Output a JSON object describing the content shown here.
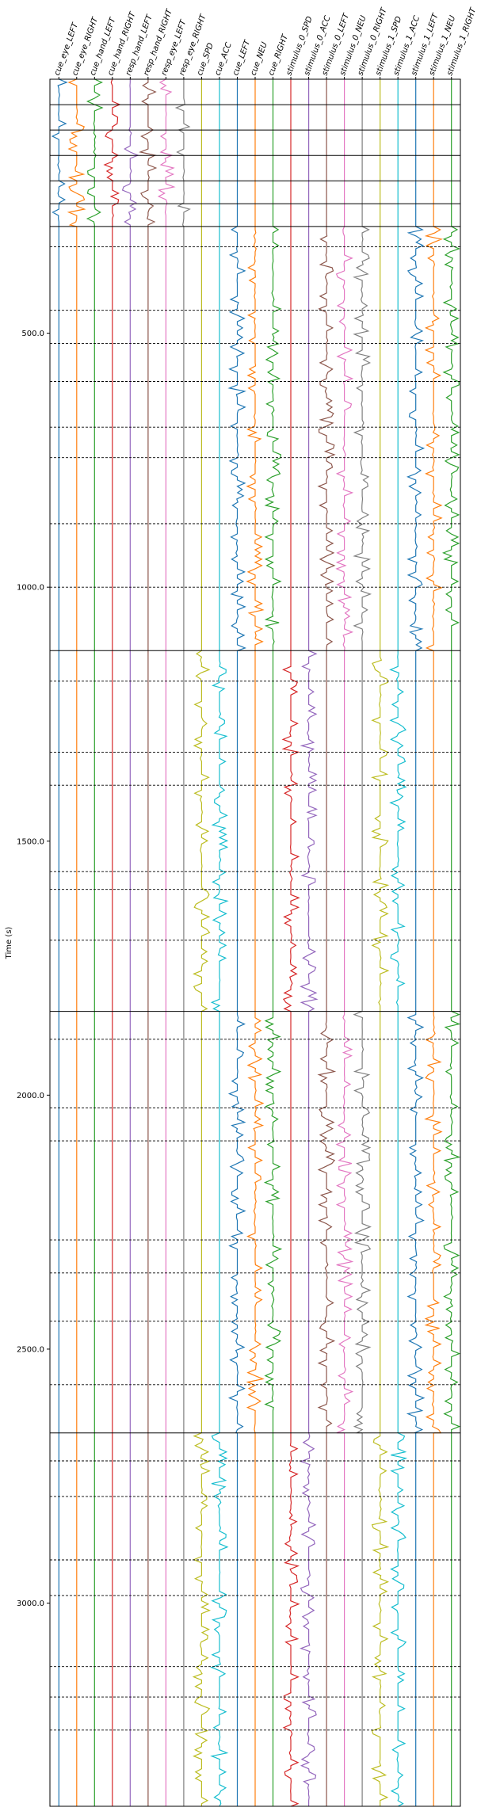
{
  "chart_data": {
    "type": "line",
    "title": "",
    "xlabel": "",
    "ylabel": "Time (s)",
    "ylim": [
      0,
      3400
    ],
    "y_inverted": true,
    "yticks": [
      500,
      1000,
      1500,
      2000,
      2500,
      3000
    ],
    "ytick_labels": [
      "500.0",
      "1000.0",
      "1500.0",
      "2000.0",
      "2500.0",
      "3000.0"
    ],
    "grid": false,
    "legend": "none",
    "columns": [
      {
        "name": "cue_eye_LEFT",
        "color": "#1f77b4"
      },
      {
        "name": "cue_eye_RIGHT",
        "color": "#ff7f0e"
      },
      {
        "name": "cue_hand_LEFT",
        "color": "#2ca02c"
      },
      {
        "name": "cue_hand_RIGHT",
        "color": "#d62728"
      },
      {
        "name": "resp_hand_LEFT",
        "color": "#9467bd"
      },
      {
        "name": "resp_hand_RIGHT",
        "color": "#8c564b"
      },
      {
        "name": "resp_eye_LEFT",
        "color": "#e377c2"
      },
      {
        "name": "resp_eye_RIGHT",
        "color": "#7f7f7f"
      },
      {
        "name": "cue_SPD",
        "color": "#bcbd22"
      },
      {
        "name": "cue_ACC",
        "color": "#17becf"
      },
      {
        "name": "cue_LEFT",
        "color": "#1f77b4"
      },
      {
        "name": "cue_NEU",
        "color": "#ff7f0e"
      },
      {
        "name": "cue_RIGHT",
        "color": "#2ca02c"
      },
      {
        "name": "stimulus_0_SPD",
        "color": "#d62728"
      },
      {
        "name": "stimulus_0_ACC",
        "color": "#9467bd"
      },
      {
        "name": "stimulus_0_LEFT",
        "color": "#8c564b"
      },
      {
        "name": "stimulus_0_NEU",
        "color": "#e377c2"
      },
      {
        "name": "stimulus_0_RIGHT",
        "color": "#7f7f7f"
      },
      {
        "name": "stimulus_1_SPD",
        "color": "#bcbd22"
      },
      {
        "name": "stimulus_1_ACC",
        "color": "#17becf"
      },
      {
        "name": "stimulus_1_LEFT",
        "color": "#1f77b4"
      },
      {
        "name": "stimulus_1_NEU",
        "color": "#ff7f0e"
      },
      {
        "name": "stimulus_1_RIGHT",
        "color": "#2ca02c"
      }
    ],
    "run_boundaries": [
      0,
      50,
      100,
      150,
      200,
      245,
      290,
      1125,
      1835,
      2665,
      3400
    ],
    "block_boundaries": [
      330,
      455,
      520,
      595,
      685,
      745,
      875,
      1000,
      1185,
      1325,
      1390,
      1560,
      1595,
      1695,
      1890,
      2025,
      2090,
      2285,
      2350,
      2445,
      2570,
      2720,
      2790,
      2915,
      2985,
      3125,
      3185,
      3250
    ],
    "segments": [
      {
        "start": 0,
        "end": 290,
        "active": [
          "cue_eye_LEFT",
          "cue_eye_RIGHT",
          "cue_hand_LEFT",
          "cue_hand_RIGHT",
          "resp_hand_LEFT",
          "resp_hand_RIGHT",
          "resp_eye_LEFT",
          "resp_eye_RIGHT"
        ]
      },
      {
        "start": 290,
        "end": 1125,
        "active": [
          "cue_LEFT",
          "cue_NEU",
          "cue_RIGHT",
          "stimulus_0_LEFT",
          "stimulus_0_NEU",
          "stimulus_0_RIGHT",
          "stimulus_1_LEFT",
          "stimulus_1_NEU",
          "stimulus_1_RIGHT"
        ]
      },
      {
        "start": 1125,
        "end": 1835,
        "active": [
          "cue_SPD",
          "cue_ACC",
          "stimulus_0_SPD",
          "stimulus_0_ACC",
          "stimulus_1_SPD",
          "stimulus_1_ACC"
        ]
      },
      {
        "start": 1835,
        "end": 2665,
        "active": [
          "cue_LEFT",
          "cue_NEU",
          "cue_RIGHT",
          "stimulus_0_LEFT",
          "stimulus_0_NEU",
          "stimulus_0_RIGHT",
          "stimulus_1_LEFT",
          "stimulus_1_NEU",
          "stimulus_1_RIGHT"
        ]
      },
      {
        "start": 2665,
        "end": 3400,
        "active": [
          "cue_SPD",
          "cue_ACC",
          "stimulus_0_SPD",
          "stimulus_0_ACC",
          "stimulus_1_SPD",
          "stimulus_1_ACC"
        ]
      }
    ]
  }
}
